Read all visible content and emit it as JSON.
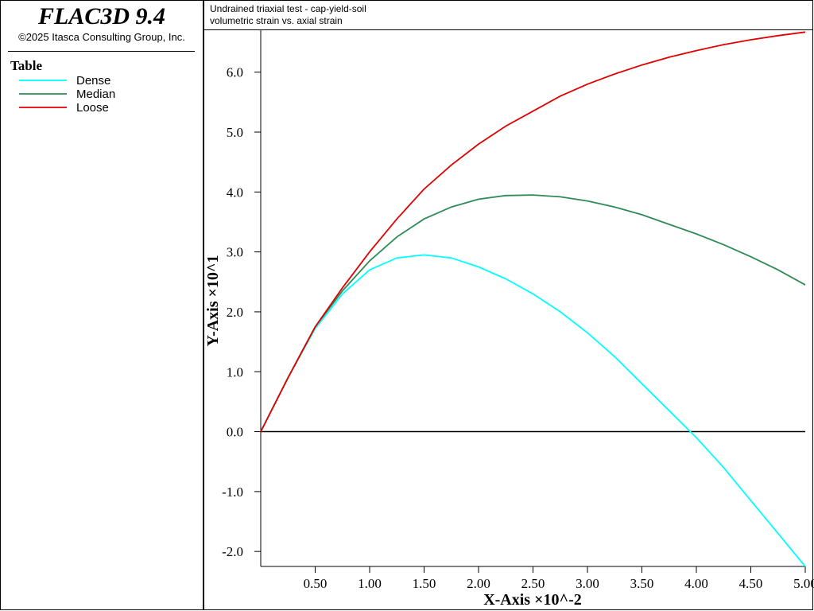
{
  "app": {
    "name": "FLAC3D 9.4",
    "copyright": "©2025 Itasca Consulting Group, Inc."
  },
  "chart_data": {
    "type": "line",
    "title": "Undrained triaxial test - cap-yield-soil",
    "subtitle": "volumetric strain vs. axial strain",
    "legend_title": "Table",
    "x_label": "X-Axis ×10^-2",
    "y_label": "Y-Axis ×10^1",
    "x": [
      0,
      0.25,
      0.5,
      0.75,
      1.0,
      1.25,
      1.5,
      1.75,
      2.0,
      2.25,
      2.5,
      2.75,
      3.0,
      3.25,
      3.5,
      3.75,
      4.0,
      4.25,
      4.5,
      4.75,
      5.0
    ],
    "series": [
      {
        "name": "Dense",
        "color": "#00ffff",
        "values": [
          0,
          0.9,
          1.72,
          2.3,
          2.7,
          2.9,
          2.95,
          2.9,
          2.75,
          2.55,
          2.3,
          2.0,
          1.65,
          1.25,
          0.8,
          0.35,
          -0.1,
          -0.6,
          -1.15,
          -1.7,
          -2.25
        ]
      },
      {
        "name": "Median",
        "color": "#2e8b57",
        "values": [
          0,
          0.9,
          1.75,
          2.35,
          2.85,
          3.25,
          3.55,
          3.75,
          3.88,
          3.94,
          3.95,
          3.92,
          3.85,
          3.75,
          3.62,
          3.46,
          3.3,
          3.12,
          2.92,
          2.7,
          2.45
        ]
      },
      {
        "name": "Loose",
        "color": "#e00000",
        "values": [
          0,
          0.9,
          1.75,
          2.4,
          3.0,
          3.55,
          4.05,
          4.45,
          4.8,
          5.1,
          5.35,
          5.6,
          5.8,
          5.97,
          6.12,
          6.25,
          6.36,
          6.46,
          6.54,
          6.61,
          6.67
        ]
      }
    ],
    "xlim": [
      0,
      5.0
    ],
    "ylim": [
      -2.25,
      6.7
    ],
    "xticks": [
      {
        "value": 0.5,
        "label": "0.50"
      },
      {
        "value": 1.0,
        "label": "1.00"
      },
      {
        "value": 1.5,
        "label": "1.50"
      },
      {
        "value": 2.0,
        "label": "2.00"
      },
      {
        "value": 2.5,
        "label": "2.50"
      },
      {
        "value": 3.0,
        "label": "3.00"
      },
      {
        "value": 3.5,
        "label": "3.50"
      },
      {
        "value": 4.0,
        "label": "4.00"
      },
      {
        "value": 4.5,
        "label": "4.50"
      },
      {
        "value": 5.0,
        "label": "5.00"
      }
    ],
    "yticks": [
      {
        "value": -2.0,
        "label": "-2.0"
      },
      {
        "value": -1.0,
        "label": "-1.0"
      },
      {
        "value": 0,
        "label": "0.0"
      },
      {
        "value": 1.0,
        "label": "1.0"
      },
      {
        "value": 2.0,
        "label": "2.0"
      },
      {
        "value": 3.0,
        "label": "3.0"
      },
      {
        "value": 4.0,
        "label": "4.0"
      },
      {
        "value": 5.0,
        "label": "5.0"
      },
      {
        "value": 6.0,
        "label": "6.0"
      }
    ],
    "zero_line": true
  }
}
